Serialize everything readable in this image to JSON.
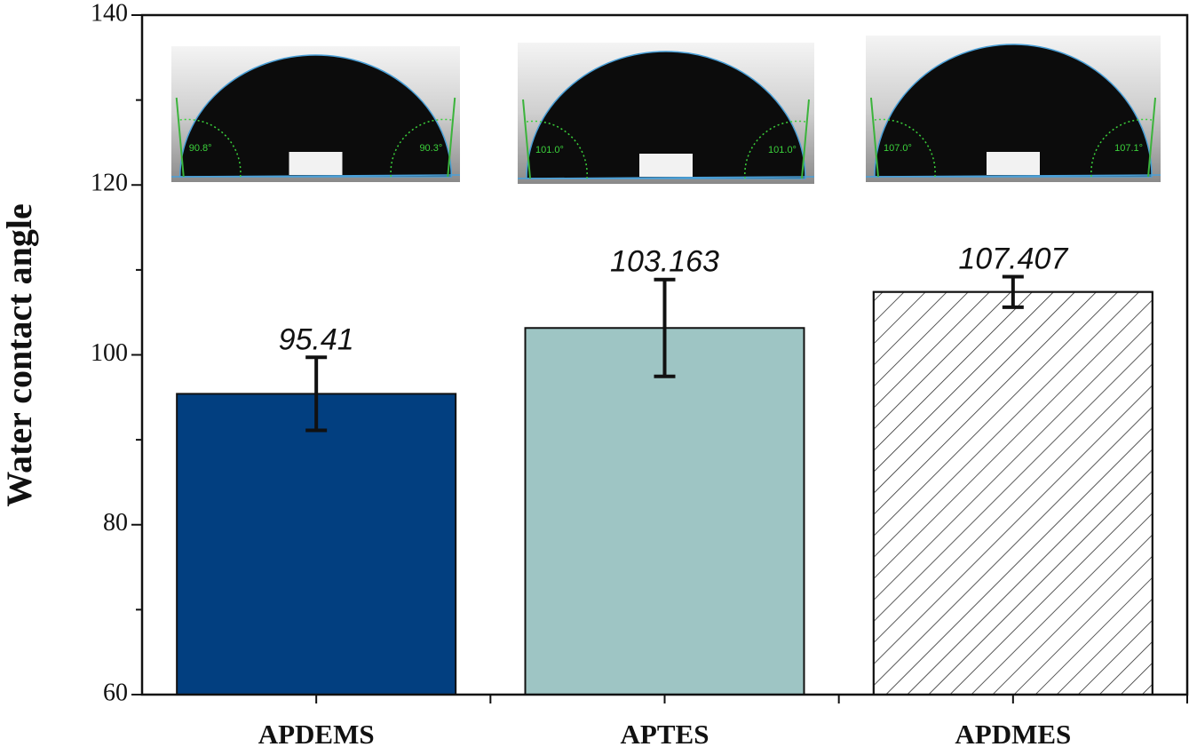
{
  "chart_data": {
    "type": "bar",
    "y_label": "Water contact angle",
    "categories": [
      "APDEMS",
      "APTES",
      "APDMES"
    ],
    "values": [
      95.41,
      103.163,
      107.407
    ],
    "errors": [
      4.3,
      5.7,
      1.8
    ],
    "colors": [
      "#023f80",
      "#9ec5c4",
      "#ffffff"
    ],
    "hatch": [
      false,
      false,
      true
    ],
    "ylim": [
      60,
      140
    ],
    "yticks": [
      60,
      80,
      100,
      120,
      140
    ],
    "yminorticks": [
      70,
      90,
      110,
      130
    ],
    "insets": [
      {
        "left_angle": "90.8°",
        "right_angle": "90.3°"
      },
      {
        "left_angle": "101.0°",
        "right_angle": "101.0°"
      },
      {
        "left_angle": "107.0°",
        "right_angle": "107.1°"
      }
    ]
  }
}
